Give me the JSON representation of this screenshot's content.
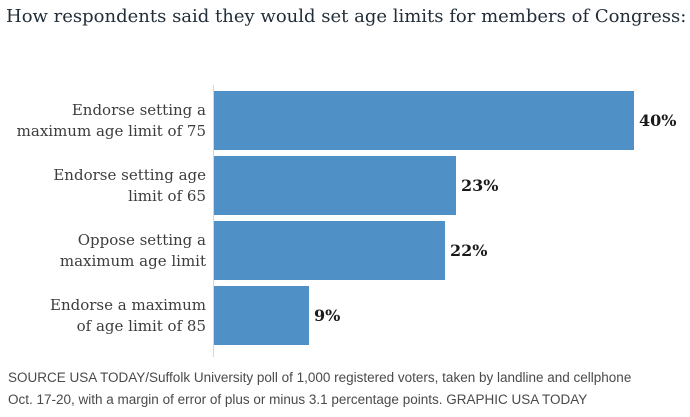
{
  "title": "How respondents said they would set age limits for members of Congress:",
  "chart_data": {
    "type": "bar",
    "orientation": "horizontal",
    "title": "How respondents said they would set age limits for members of Congress:",
    "categories": [
      "Endorse setting a\nmaximum age limit of 75",
      "Endorse setting age\nlimit of 65",
      "Oppose setting a\nmaximum age limit",
      "Endorse a maximum\nof age limit of 85"
    ],
    "values": [
      40,
      23,
      22,
      9
    ],
    "value_labels": [
      "40%",
      "23%",
      "22%",
      "9%"
    ],
    "xlabel": "",
    "ylabel": "",
    "xlim": [
      0,
      40
    ],
    "grid": false,
    "legend": false,
    "bar_color": "#4f90c6",
    "axis_line_color": "#d6d6d6",
    "value_label_color": "#1a1a1a",
    "category_label_color": "#3d3d3d"
  },
  "source_note": {
    "line1": "SOURCE USA TODAY/Suffolk University poll of 1,000 registered voters, taken by landline and cellphone",
    "line2": "Oct. 17-20, with a margin of error of plus or minus 3.1 percentage points. GRAPHIC USA TODAY"
  }
}
